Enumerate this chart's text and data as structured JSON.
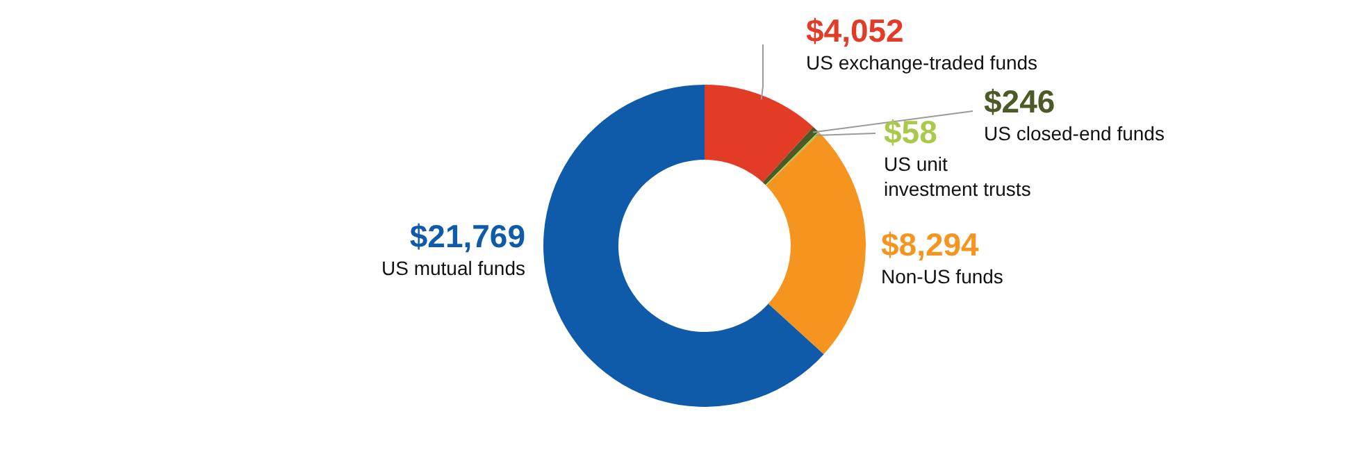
{
  "chart_data": {
    "type": "donut",
    "categories": [
      "US exchange-traded funds",
      "US closed-end funds",
      "US unit investment trusts",
      "Non-US funds",
      "US mutual funds"
    ],
    "values": [
      4052,
      246,
      58,
      8294,
      21769
    ],
    "value_labels": [
      "$4,052",
      "$246",
      "$58",
      "$8,294",
      "$21,769"
    ],
    "colors": [
      "#e23b26",
      "#4b5a27",
      "#a9c94b",
      "#f5951f",
      "#0f5ba9"
    ]
  }
}
